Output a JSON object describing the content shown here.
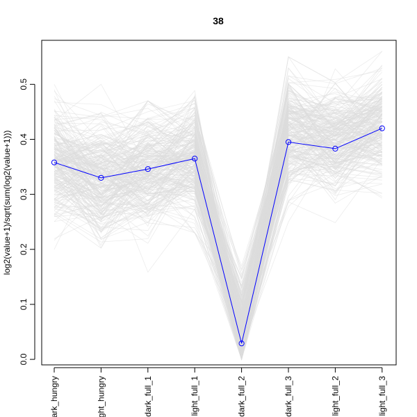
{
  "chart_data": {
    "type": "line",
    "title": "38",
    "xlabel": "",
    "ylabel": "log2(value+1)/sqrt(sum(log2(value+1)))",
    "categories": [
      "dark_hungry",
      "light_hungry",
      "dark_full_1",
      "light_full_1",
      "dark_full_2",
      "dark_full_3",
      "light_full_2",
      "light_full_3"
    ],
    "ylim": [
      -0.01,
      0.58
    ],
    "yticks": [
      0.0,
      0.1,
      0.2,
      0.3,
      0.4,
      0.5
    ],
    "ytick_labels": [
      "0.0",
      "0.1",
      "0.2",
      "0.3",
      "0.4",
      "0.5"
    ],
    "grid": false,
    "legend": "none",
    "series": [
      {
        "role": "highlight",
        "color": "#0000ff",
        "values": [
          0.358,
          0.33,
          0.346,
          0.365,
          0.029,
          0.395,
          0.383,
          0.42
        ]
      }
    ],
    "background_series": {
      "color": "#dddddd",
      "count": 250,
      "mean": [
        0.358,
        0.33,
        0.346,
        0.365,
        0.06,
        0.41,
        0.4,
        0.425
      ],
      "spread": [
        0.055,
        0.06,
        0.055,
        0.05,
        0.055,
        0.055,
        0.05,
        0.05
      ],
      "min": [
        0.2,
        0.18,
        0.14,
        0.23,
        0.0,
        0.25,
        0.19,
        0.27
      ],
      "max": [
        0.5,
        0.5,
        0.47,
        0.51,
        0.31,
        0.55,
        0.53,
        0.56
      ]
    }
  }
}
